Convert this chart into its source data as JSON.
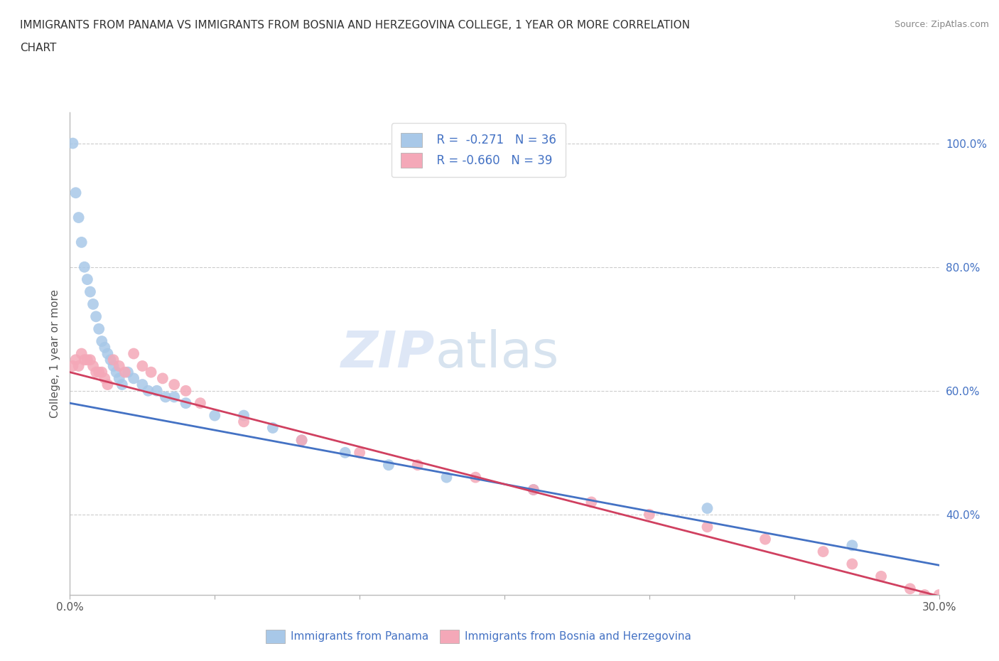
{
  "title_line1": "IMMIGRANTS FROM PANAMA VS IMMIGRANTS FROM BOSNIA AND HERZEGOVINA COLLEGE, 1 YEAR OR MORE CORRELATION",
  "title_line2": "CHART",
  "source": "Source: ZipAtlas.com",
  "ylabel": "College, 1 year or more",
  "xlim": [
    0.0,
    0.3
  ],
  "ylim": [
    0.27,
    1.05
  ],
  "color_blue": "#a8c8e8",
  "color_pink": "#f4a8b8",
  "line_color_blue": "#4472c4",
  "line_color_pink": "#d04060",
  "watermark_zip": "ZIP",
  "watermark_atlas": "atlas",
  "legend_label1": "Immigrants from Panama",
  "legend_label2": "Immigrants from Bosnia and Herzegovina",
  "panama_x": [
    0.001,
    0.002,
    0.003,
    0.004,
    0.005,
    0.006,
    0.007,
    0.008,
    0.009,
    0.01,
    0.011,
    0.012,
    0.013,
    0.014,
    0.015,
    0.016,
    0.017,
    0.018,
    0.02,
    0.022,
    0.025,
    0.027,
    0.03,
    0.033,
    0.036,
    0.04,
    0.05,
    0.06,
    0.07,
    0.08,
    0.095,
    0.11,
    0.13,
    0.16,
    0.22,
    0.27
  ],
  "panama_y": [
    1.0,
    0.92,
    0.88,
    0.84,
    0.8,
    0.78,
    0.76,
    0.74,
    0.72,
    0.7,
    0.68,
    0.67,
    0.66,
    0.65,
    0.64,
    0.63,
    0.62,
    0.61,
    0.63,
    0.62,
    0.61,
    0.6,
    0.6,
    0.59,
    0.59,
    0.58,
    0.56,
    0.56,
    0.54,
    0.52,
    0.5,
    0.48,
    0.46,
    0.44,
    0.41,
    0.35
  ],
  "bosnia_x": [
    0.001,
    0.002,
    0.003,
    0.004,
    0.005,
    0.006,
    0.007,
    0.008,
    0.009,
    0.01,
    0.011,
    0.012,
    0.013,
    0.015,
    0.017,
    0.019,
    0.022,
    0.025,
    0.028,
    0.032,
    0.036,
    0.04,
    0.045,
    0.06,
    0.08,
    0.1,
    0.12,
    0.14,
    0.16,
    0.18,
    0.2,
    0.22,
    0.24,
    0.26,
    0.27,
    0.28,
    0.29,
    0.295,
    0.3
  ],
  "bosnia_y": [
    0.64,
    0.65,
    0.64,
    0.66,
    0.65,
    0.65,
    0.65,
    0.64,
    0.63,
    0.63,
    0.63,
    0.62,
    0.61,
    0.65,
    0.64,
    0.63,
    0.66,
    0.64,
    0.63,
    0.62,
    0.61,
    0.6,
    0.58,
    0.55,
    0.52,
    0.5,
    0.48,
    0.46,
    0.44,
    0.42,
    0.4,
    0.38,
    0.36,
    0.34,
    0.32,
    0.3,
    0.28,
    0.27,
    0.27
  ]
}
